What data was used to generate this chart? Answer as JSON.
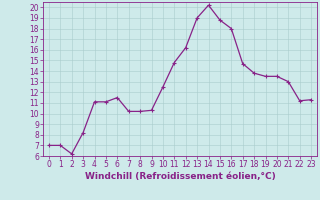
{
  "x": [
    0,
    1,
    2,
    3,
    4,
    5,
    6,
    7,
    8,
    9,
    10,
    11,
    12,
    13,
    14,
    15,
    16,
    17,
    18,
    19,
    20,
    21,
    22,
    23
  ],
  "y": [
    7.0,
    7.0,
    6.2,
    8.2,
    11.1,
    11.1,
    11.5,
    10.2,
    10.2,
    10.3,
    12.5,
    14.8,
    16.2,
    19.0,
    20.2,
    18.8,
    18.0,
    14.7,
    13.8,
    13.5,
    13.5,
    13.0,
    11.2,
    11.3
  ],
  "line_color": "#882288",
  "marker": "+",
  "marker_size": 3,
  "linewidth": 0.9,
  "xlabel": "Windchill (Refroidissement éolien,°C)",
  "xlim": [
    -0.5,
    23.5
  ],
  "ylim": [
    6,
    20.5
  ],
  "yticks": [
    6,
    7,
    8,
    9,
    10,
    11,
    12,
    13,
    14,
    15,
    16,
    17,
    18,
    19,
    20
  ],
  "xticks": [
    0,
    1,
    2,
    3,
    4,
    5,
    6,
    7,
    8,
    9,
    10,
    11,
    12,
    13,
    14,
    15,
    16,
    17,
    18,
    19,
    20,
    21,
    22,
    23
  ],
  "bg_color": "#ceeaea",
  "grid_color": "#aacccc",
  "tick_color": "#882288",
  "label_color": "#882288",
  "tick_fontsize": 5.5,
  "xlabel_fontsize": 6.5
}
